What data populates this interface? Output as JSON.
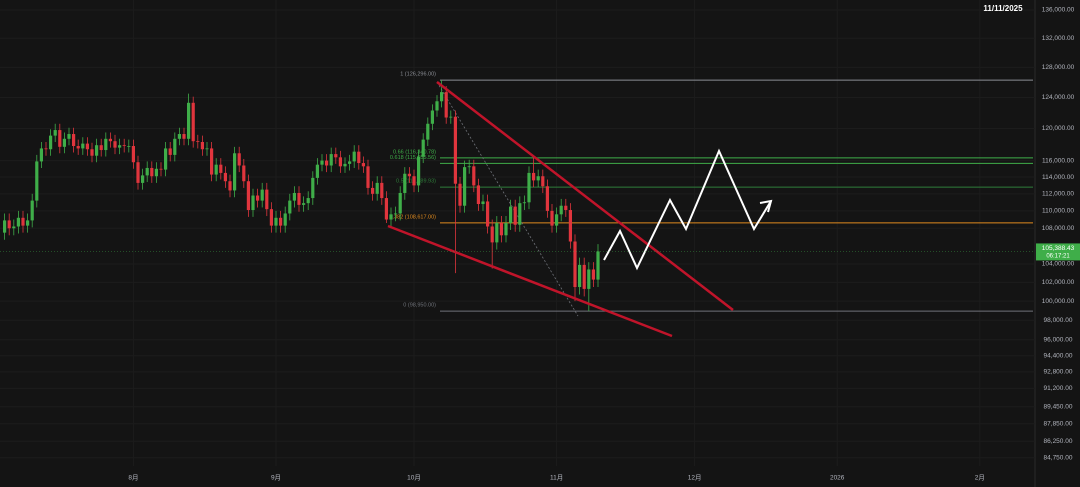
{
  "chart_data": {
    "type": "candlestick",
    "date": "11/11/2025",
    "up_color": "#3fae49",
    "down_color": "#e0353d",
    "log_scale": true,
    "ylim": [
      84020,
      137440
    ],
    "yticks": [
      {
        "value": 136000,
        "label": "136,000.00"
      },
      {
        "value": 132000,
        "label": "132,000.00"
      },
      {
        "value": 128000,
        "label": "128,000.00"
      },
      {
        "value": 124000,
        "label": "124,000.00"
      },
      {
        "value": 120000,
        "label": "120,000.00"
      },
      {
        "value": 116000,
        "label": "116,000.00"
      },
      {
        "value": 114000,
        "label": "114,000.00"
      },
      {
        "value": 112000,
        "label": "112,000.00"
      },
      {
        "value": 110000,
        "label": "110,000.00"
      },
      {
        "value": 108000,
        "label": "108,000.00"
      },
      {
        "value": 104000,
        "label": "104,000.00"
      },
      {
        "value": 102000,
        "label": "102,000.00"
      },
      {
        "value": 100000,
        "label": "100,000.00"
      },
      {
        "value": 98000,
        "label": "98,000.00"
      },
      {
        "value": 96000,
        "label": "96,000.00"
      },
      {
        "value": 94400,
        "label": "94,400.00"
      },
      {
        "value": 92800,
        "label": "92,800.00"
      },
      {
        "value": 91200,
        "label": "91,200.00"
      },
      {
        "value": 89450,
        "label": "89,450.00"
      },
      {
        "value": 87850,
        "label": "87,850.00"
      },
      {
        "value": 86250,
        "label": "86,250.00"
      },
      {
        "value": 84750,
        "label": "84,750.00"
      }
    ],
    "xlim": [
      2,
      227
    ],
    "xticks": [
      {
        "value": 31,
        "label": "8月"
      },
      {
        "value": 62,
        "label": "9月"
      },
      {
        "value": 92,
        "label": "10月"
      },
      {
        "value": 123,
        "label": "11月"
      },
      {
        "value": 153,
        "label": "12月"
      },
      {
        "value": 184,
        "label": "2026"
      },
      {
        "value": 215,
        "label": "2月"
      }
    ],
    "x": [
      3,
      4,
      5,
      6,
      7,
      8,
      9,
      10,
      11,
      12,
      13,
      14,
      15,
      16,
      17,
      18,
      19,
      20,
      21,
      22,
      23,
      24,
      25,
      26,
      27,
      28,
      29,
      30,
      31,
      32,
      33,
      34,
      35,
      36,
      37,
      38,
      39,
      40,
      41,
      42,
      43,
      44,
      45,
      46,
      47,
      48,
      49,
      50,
      51,
      52,
      53,
      54,
      55,
      56,
      57,
      58,
      59,
      60,
      61,
      62,
      63,
      64,
      65,
      66,
      67,
      68,
      69,
      70,
      71,
      72,
      73,
      74,
      75,
      76,
      77,
      78,
      79,
      80,
      81,
      82,
      83,
      84,
      85,
      86,
      87,
      88,
      89,
      90,
      91,
      92,
      93,
      94,
      95,
      96,
      97,
      98,
      99,
      100,
      101,
      102,
      103,
      104,
      105,
      106,
      107,
      108,
      109,
      110,
      111,
      112,
      113,
      114,
      115,
      116,
      117,
      118,
      119,
      120,
      121,
      122,
      123,
      124,
      125,
      126,
      127,
      128,
      129,
      130,
      131,
      132
    ],
    "open": [
      107500,
      108900,
      108000,
      108200,
      109200,
      108300,
      108900,
      111200,
      115900,
      117500,
      117400,
      119100,
      119800,
      117700,
      118700,
      119300,
      117800,
      117500,
      118100,
      117400,
      116600,
      117900,
      117300,
      118700,
      118400,
      117600,
      117900,
      117800,
      117800,
      115800,
      113300,
      114200,
      115100,
      114100,
      115000,
      114900,
      117500,
      116700,
      118700,
      119300,
      118700,
      123300,
      118400,
      118300,
      117400,
      117500,
      114300,
      115500,
      114500,
      113500,
      112400,
      116900,
      115400,
      113500,
      110100,
      111800,
      111200,
      112500,
      110200,
      108300,
      109200,
      108300,
      109700,
      111200,
      112100,
      110700,
      110900,
      111500,
      113900,
      115500,
      116000,
      115400,
      116800,
      116400,
      115300,
      115600,
      115900,
      117100,
      115700,
      115300,
      112700,
      112000,
      113300,
      111500,
      109000,
      109600,
      109700,
      112100,
      114400,
      114100,
      113000,
      116500,
      118600,
      120600,
      122300,
      123500,
      124700,
      121400,
      121500,
      113200,
      110600,
      115200,
      115300,
      113000,
      110800,
      111100,
      108200,
      106400,
      108600,
      107200,
      108600,
      110500,
      108400,
      110900,
      111000,
      114500,
      113600,
      114100,
      112900,
      110000,
      108300,
      109600,
      110600,
      110100,
      106500,
      101500,
      103900,
      101300,
      103400,
      102300
    ],
    "high": [
      109700,
      109700,
      109000,
      110000,
      110000,
      109700,
      112000,
      116700,
      118300,
      118300,
      119900,
      120600,
      120600,
      119500,
      120100,
      120100,
      118600,
      118900,
      118900,
      118200,
      118700,
      118700,
      119500,
      119500,
      119200,
      118700,
      118700,
      118600,
      118600,
      116600,
      115000,
      115900,
      115900,
      115800,
      115800,
      118300,
      118300,
      119500,
      120100,
      120100,
      124500,
      124100,
      119200,
      119100,
      118300,
      118300,
      116300,
      116300,
      115300,
      114300,
      117700,
      117700,
      116200,
      114300,
      112600,
      112600,
      113300,
      113300,
      111000,
      110000,
      110000,
      110500,
      112000,
      112900,
      112900,
      111700,
      112300,
      114700,
      116300,
      116800,
      116800,
      117600,
      117600,
      117200,
      116400,
      116700,
      117900,
      117900,
      116500,
      116100,
      113500,
      114100,
      114100,
      112300,
      110400,
      110500,
      112900,
      115200,
      115200,
      114900,
      117300,
      119400,
      121400,
      123100,
      124300,
      126296,
      125500,
      122300,
      122300,
      114000,
      116000,
      116100,
      116100,
      113800,
      111900,
      111900,
      109000,
      109400,
      109400,
      109400,
      111300,
      111300,
      111700,
      111800,
      115300,
      116400,
      114900,
      114900,
      113700,
      110800,
      110400,
      111400,
      111400,
      110900,
      107300,
      104700,
      104700,
      104200,
      104200,
      106200
    ],
    "low": [
      106700,
      107200,
      107200,
      107400,
      107500,
      107500,
      108100,
      110400,
      115100,
      116600,
      116600,
      118300,
      116900,
      116900,
      117900,
      117000,
      116700,
      116700,
      116600,
      115800,
      115800,
      116500,
      116500,
      117600,
      116800,
      116800,
      117000,
      117000,
      115000,
      112500,
      112500,
      113400,
      113300,
      113300,
      114100,
      114100,
      115900,
      115900,
      117900,
      117900,
      117900,
      117600,
      117500,
      116600,
      116600,
      113500,
      113500,
      113700,
      112700,
      111600,
      111600,
      114600,
      112700,
      109300,
      109300,
      110400,
      110400,
      109400,
      107500,
      107500,
      107500,
      107500,
      108900,
      110400,
      109900,
      109900,
      110100,
      110700,
      113100,
      114700,
      114600,
      114600,
      115600,
      114500,
      114500,
      114800,
      115100,
      114900,
      114500,
      111900,
      111200,
      111200,
      110700,
      108600,
      108200,
      108800,
      108900,
      111300,
      113300,
      112200,
      112200,
      115700,
      117800,
      119800,
      121500,
      122700,
      120600,
      120600,
      103000,
      109800,
      109800,
      114400,
      112200,
      110000,
      110000,
      107400,
      103500,
      105600,
      106400,
      106400,
      107800,
      107600,
      107600,
      110100,
      110200,
      112800,
      112800,
      112100,
      109200,
      107500,
      107500,
      108800,
      109300,
      105700,
      100000,
      100700,
      100500,
      98950,
      101500,
      101500
    ],
    "close": [
      108900,
      108000,
      108200,
      109200,
      108300,
      108900,
      111200,
      115900,
      117500,
      117400,
      119100,
      119800,
      117700,
      118700,
      119300,
      117800,
      117500,
      118100,
      117400,
      116600,
      117900,
      117300,
      118700,
      118400,
      117600,
      117900,
      117800,
      117800,
      115800,
      113300,
      114200,
      115100,
      114100,
      115000,
      114900,
      117500,
      116700,
      118700,
      119300,
      118700,
      123300,
      118400,
      118300,
      117400,
      117500,
      114300,
      115500,
      114500,
      113500,
      112400,
      116900,
      115400,
      113500,
      110100,
      111800,
      111200,
      112500,
      110200,
      108300,
      109200,
      108300,
      109700,
      111200,
      112100,
      110700,
      110900,
      111500,
      113900,
      115500,
      116000,
      115400,
      116800,
      116400,
      115300,
      115600,
      115900,
      117100,
      115700,
      115300,
      112700,
      112000,
      113300,
      111500,
      109000,
      109600,
      109700,
      112100,
      114400,
      114100,
      113000,
      116500,
      118600,
      120600,
      122300,
      123500,
      124700,
      121400,
      121500,
      113200,
      110600,
      115200,
      115300,
      113000,
      110800,
      111100,
      108200,
      106400,
      108600,
      107200,
      108600,
      110500,
      108400,
      110900,
      111000,
      114500,
      113600,
      114100,
      112900,
      110000,
      108300,
      109600,
      110600,
      110100,
      106500,
      101500,
      103900,
      101300,
      103400,
      102300,
      105388.43
    ],
    "fib_levels": [
      {
        "label": "1 (126,296.00)",
        "value": 126296,
        "color": "#8a8d94"
      },
      {
        "label": "0.66 (116,340.78)",
        "value": 116340.78,
        "color": "#3fae49"
      },
      {
        "label": "0.618 (115,655.56)",
        "value": 115655.56,
        "color": "#3fae49"
      },
      {
        "label": "0.5 (112,789.93)",
        "value": 112789.93,
        "color": "#2f7d3a"
      },
      {
        "label": "0.382 (108,617.00)",
        "value": 108617,
        "color": "#e08a1e"
      },
      {
        "label": "0 (98,950.00)",
        "value": 98950,
        "color": "#6f7279"
      }
    ],
    "price_label": {
      "value": 105388.43,
      "label": "105,388.43",
      "countdown": "06:17:21",
      "color": "#3fae49"
    }
  }
}
